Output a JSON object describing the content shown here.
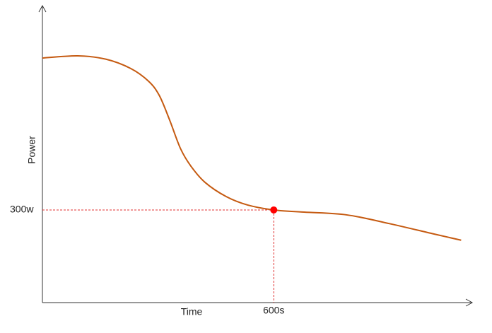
{
  "chart_data": {
    "type": "line",
    "x_label": "Time",
    "y_label": "Power",
    "x": [
      0,
      92,
      165,
      229,
      275,
      303,
      330,
      358,
      385,
      422,
      477,
      532,
      600,
      679,
      789,
      899,
      1009,
      1086
    ],
    "series": [
      {
        "color": "#c55a11",
        "values": [
          792,
          799,
          788,
          758,
          717,
          671,
          591,
          499,
          442,
          389,
          343,
          316,
          300,
          293,
          284,
          256,
          224,
          202
        ]
      }
    ],
    "highlight": {
      "x": 600,
      "y": 300,
      "color": "#ff0000"
    },
    "xlim": [
      0,
      1100
    ],
    "ylim": [
      0,
      950
    ],
    "xticks": [
      {
        "value": 600,
        "label": "600s"
      }
    ],
    "yticks": [
      {
        "value": 300,
        "label": "300w"
      }
    ]
  }
}
